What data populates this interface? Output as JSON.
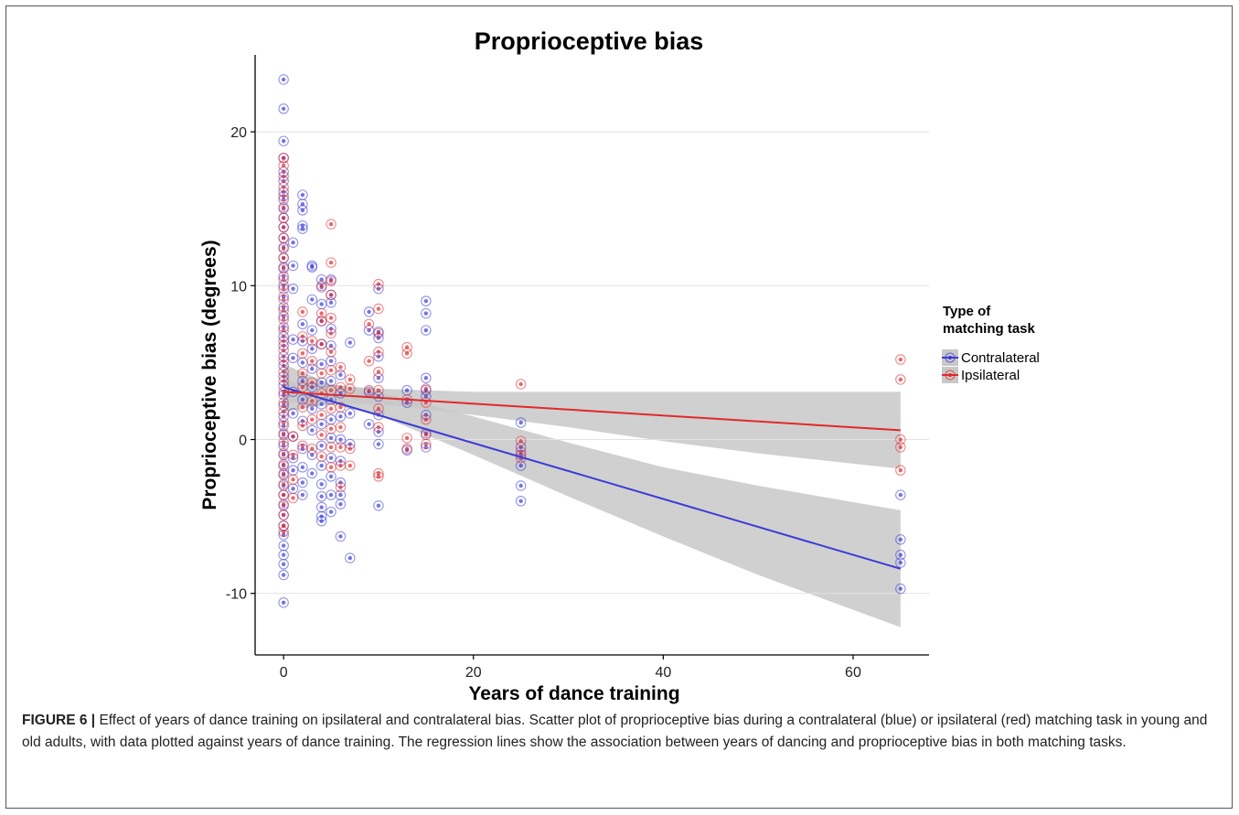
{
  "figure": {
    "caption_label": "FIGURE 6 |",
    "caption_text": " Effect of years of dance training on ipsilateral and contralateral bias. Scatter plot of proprioceptive bias during a contralateral (blue) or ipsilateral (red) matching task in young and old adults, with data plotted against years of dance training. The regression lines show the association between years of dancing and proprioceptive bias in both matching tasks."
  },
  "colors": {
    "contralateral": "#3b3bd6",
    "ipsilateral": "#e02a2a",
    "ribbon": "#c8c8c8"
  },
  "chart_data": {
    "type": "scatter",
    "title": "Proprioceptive bias",
    "xlabel": "Years of dance training",
    "ylabel": "Proprioceptive bias (degrees)",
    "xlim": [
      -3,
      68
    ],
    "ylim": [
      -14,
      25
    ],
    "xticks": [
      0,
      20,
      40,
      60
    ],
    "yticks": [
      -10,
      0,
      10,
      20
    ],
    "grid": "horizontal",
    "legend": {
      "title_line1": "Type of",
      "title_line2": "matching task",
      "placement": "right"
    },
    "series": [
      {
        "name": "Contralateral",
        "color": "#3b3bd6",
        "points": [
          [
            0,
            23.4
          ],
          [
            0,
            21.5
          ],
          [
            0,
            19.4
          ],
          [
            0,
            18.3
          ],
          [
            0,
            17.4
          ],
          [
            0,
            16.8
          ],
          [
            0,
            16.1
          ],
          [
            0,
            15.6
          ],
          [
            0,
            15.0
          ],
          [
            0,
            14.4
          ],
          [
            0,
            13.8
          ],
          [
            0,
            13.1
          ],
          [
            0,
            12.5
          ],
          [
            0,
            11.8
          ],
          [
            0,
            11.2
          ],
          [
            0,
            10.6
          ],
          [
            0,
            10.0
          ],
          [
            0,
            9.3
          ],
          [
            0,
            8.6
          ],
          [
            0,
            8.0
          ],
          [
            0,
            7.3
          ],
          [
            0,
            6.7
          ],
          [
            0,
            6.1
          ],
          [
            0,
            5.4
          ],
          [
            0,
            4.8
          ],
          [
            0,
            4.1
          ],
          [
            0,
            3.5
          ],
          [
            0,
            2.9
          ],
          [
            0,
            2.2
          ],
          [
            0,
            1.5
          ],
          [
            0,
            0.9
          ],
          [
            0,
            0.3
          ],
          [
            0,
            -0.4
          ],
          [
            0,
            -1.0
          ],
          [
            0,
            -1.7
          ],
          [
            0,
            -2.3
          ],
          [
            0,
            -3.0
          ],
          [
            0,
            -3.6
          ],
          [
            0,
            -4.3
          ],
          [
            0,
            -4.9
          ],
          [
            0,
            -5.6
          ],
          [
            0,
            -6.2
          ],
          [
            0,
            -6.9
          ],
          [
            0,
            -7.5
          ],
          [
            0,
            -8.1
          ],
          [
            0,
            -8.8
          ],
          [
            0,
            -10.6
          ],
          [
            1,
            12.8
          ],
          [
            1,
            11.3
          ],
          [
            1,
            9.8
          ],
          [
            1,
            6.5
          ],
          [
            1,
            5.3
          ],
          [
            1,
            3.1
          ],
          [
            1,
            1.7
          ],
          [
            1,
            0.2
          ],
          [
            1,
            -1.2
          ],
          [
            1,
            -2.0
          ],
          [
            1,
            -3.2
          ],
          [
            2,
            15.9
          ],
          [
            2,
            15.3
          ],
          [
            2,
            14.9
          ],
          [
            2,
            13.9
          ],
          [
            2,
            13.7
          ],
          [
            2,
            7.5
          ],
          [
            2,
            6.4
          ],
          [
            2,
            5.0
          ],
          [
            2,
            3.8
          ],
          [
            2,
            2.6
          ],
          [
            2,
            1.2
          ],
          [
            2,
            -0.6
          ],
          [
            2,
            -1.8
          ],
          [
            2,
            -2.8
          ],
          [
            2,
            -3.6
          ],
          [
            3,
            11.3
          ],
          [
            3,
            11.2
          ],
          [
            3,
            9.1
          ],
          [
            3,
            7.1
          ],
          [
            3,
            5.9
          ],
          [
            3,
            4.6
          ],
          [
            3,
            3.4
          ],
          [
            3,
            2.0
          ],
          [
            3,
            0.6
          ],
          [
            3,
            -1.0
          ],
          [
            3,
            -2.2
          ],
          [
            4,
            10.4
          ],
          [
            4,
            9.9
          ],
          [
            4,
            8.8
          ],
          [
            4,
            7.7
          ],
          [
            4,
            6.2
          ],
          [
            4,
            4.9
          ],
          [
            4,
            3.7
          ],
          [
            4,
            2.3
          ],
          [
            4,
            1.0
          ],
          [
            4,
            -0.4
          ],
          [
            4,
            -1.7
          ],
          [
            4,
            -2.9
          ],
          [
            4,
            -3.7
          ],
          [
            4,
            -4.4
          ],
          [
            4,
            -5.0
          ],
          [
            4,
            -5.3
          ],
          [
            5,
            10.4
          ],
          [
            5,
            9.4
          ],
          [
            5,
            8.9
          ],
          [
            5,
            7.2
          ],
          [
            5,
            6.1
          ],
          [
            5,
            5.1
          ],
          [
            5,
            3.8
          ],
          [
            5,
            2.6
          ],
          [
            5,
            1.3
          ],
          [
            5,
            0.1
          ],
          [
            5,
            -1.2
          ],
          [
            5,
            -2.4
          ],
          [
            5,
            -3.6
          ],
          [
            5,
            -4.7
          ],
          [
            6,
            4.2
          ],
          [
            6,
            3.0
          ],
          [
            6,
            1.5
          ],
          [
            6,
            0.0
          ],
          [
            6,
            -1.4
          ],
          [
            6,
            -2.8
          ],
          [
            6,
            -3.6
          ],
          [
            6,
            -4.2
          ],
          [
            6,
            -6.3
          ],
          [
            7,
            6.3
          ],
          [
            7,
            1.7
          ],
          [
            7,
            -0.3
          ],
          [
            7,
            -7.7
          ],
          [
            9,
            8.3
          ],
          [
            9,
            7.1
          ],
          [
            9,
            3.1
          ],
          [
            9,
            1.0
          ],
          [
            10,
            9.8
          ],
          [
            10,
            7.0
          ],
          [
            10,
            6.6
          ],
          [
            10,
            5.4
          ],
          [
            10,
            4.0
          ],
          [
            10,
            2.8
          ],
          [
            10,
            1.6
          ],
          [
            10,
            0.5
          ],
          [
            10,
            -0.3
          ],
          [
            10,
            -4.3
          ],
          [
            13,
            3.2
          ],
          [
            13,
            2.4
          ],
          [
            13,
            -0.7
          ],
          [
            15,
            9.0
          ],
          [
            15,
            8.2
          ],
          [
            15,
            7.1
          ],
          [
            15,
            4.0
          ],
          [
            15,
            3.2
          ],
          [
            15,
            2.8
          ],
          [
            15,
            1.6
          ],
          [
            15,
            0.4
          ],
          [
            15,
            -0.5
          ],
          [
            25,
            1.1
          ],
          [
            25,
            -0.5
          ],
          [
            25,
            -1.0
          ],
          [
            25,
            -1.7
          ],
          [
            25,
            -3.0
          ],
          [
            25,
            -4.0
          ],
          [
            65,
            -3.6
          ],
          [
            65,
            -6.5
          ],
          [
            65,
            -7.5
          ],
          [
            65,
            -8.0
          ],
          [
            65,
            -9.7
          ]
        ],
        "fit": {
          "x": [
            0,
            65
          ],
          "y": [
            3.4,
            -8.4
          ]
        },
        "ci_upper": [
          [
            0,
            4.9
          ],
          [
            5,
            3.6
          ],
          [
            10,
            3.1
          ],
          [
            20,
            1.5
          ],
          [
            30,
            -0.2
          ],
          [
            40,
            -1.8
          ],
          [
            50,
            -3.0
          ],
          [
            65,
            -4.6
          ]
        ],
        "ci_lower": [
          [
            0,
            1.8
          ],
          [
            5,
            2.3
          ],
          [
            10,
            1.6
          ],
          [
            20,
            -1.0
          ],
          [
            30,
            -3.7
          ],
          [
            40,
            -6.3
          ],
          [
            50,
            -8.8
          ],
          [
            65,
            -12.2
          ]
        ]
      },
      {
        "name": "Ipsilateral",
        "color": "#e02a2a",
        "points": [
          [
            0,
            18.3
          ],
          [
            0,
            17.8
          ],
          [
            0,
            17.1
          ],
          [
            0,
            16.4
          ],
          [
            0,
            15.8
          ],
          [
            0,
            15.1
          ],
          [
            0,
            14.4
          ],
          [
            0,
            13.8
          ],
          [
            0,
            13.1
          ],
          [
            0,
            12.4
          ],
          [
            0,
            11.8
          ],
          [
            0,
            11.1
          ],
          [
            0,
            10.4
          ],
          [
            0,
            9.8
          ],
          [
            0,
            9.1
          ],
          [
            0,
            8.4
          ],
          [
            0,
            7.8
          ],
          [
            0,
            7.1
          ],
          [
            0,
            6.4
          ],
          [
            0,
            5.8
          ],
          [
            0,
            5.1
          ],
          [
            0,
            4.4
          ],
          [
            0,
            3.8
          ],
          [
            0,
            3.1
          ],
          [
            0,
            2.4
          ],
          [
            0,
            1.8
          ],
          [
            0,
            1.1
          ],
          [
            0,
            0.4
          ],
          [
            0,
            -0.2
          ],
          [
            0,
            -0.9
          ],
          [
            0,
            -1.6
          ],
          [
            0,
            -2.2
          ],
          [
            0,
            -2.9
          ],
          [
            0,
            -3.6
          ],
          [
            0,
            -4.2
          ],
          [
            0,
            -4.9
          ],
          [
            0,
            -5.6
          ],
          [
            0,
            -6.0
          ],
          [
            1,
            0.2
          ],
          [
            1,
            -1.0
          ],
          [
            1,
            -2.6
          ],
          [
            1,
            -3.8
          ],
          [
            2,
            8.3
          ],
          [
            2,
            6.7
          ],
          [
            2,
            5.6
          ],
          [
            2,
            4.3
          ],
          [
            2,
            3.4
          ],
          [
            2,
            2.1
          ],
          [
            2,
            0.9
          ],
          [
            2,
            -0.4
          ],
          [
            3,
            6.4
          ],
          [
            3,
            5.1
          ],
          [
            3,
            3.7
          ],
          [
            3,
            2.5
          ],
          [
            3,
            1.3
          ],
          [
            3,
            -0.6
          ],
          [
            4,
            10.0
          ],
          [
            4,
            8.2
          ],
          [
            4,
            7.7
          ],
          [
            4,
            6.2
          ],
          [
            4,
            4.3
          ],
          [
            4,
            3.0
          ],
          [
            4,
            1.6
          ],
          [
            4,
            0.3
          ],
          [
            4,
            -1.1
          ],
          [
            5,
            14.0
          ],
          [
            5,
            11.5
          ],
          [
            5,
            10.3
          ],
          [
            5,
            9.4
          ],
          [
            5,
            7.9
          ],
          [
            5,
            6.9
          ],
          [
            5,
            5.7
          ],
          [
            5,
            4.5
          ],
          [
            5,
            3.2
          ],
          [
            5,
            2.0
          ],
          [
            5,
            0.7
          ],
          [
            5,
            -0.5
          ],
          [
            5,
            -1.8
          ],
          [
            6,
            4.7
          ],
          [
            6,
            3.4
          ],
          [
            6,
            2.1
          ],
          [
            6,
            0.8
          ],
          [
            6,
            -0.5
          ],
          [
            6,
            -1.7
          ],
          [
            6,
            -3.1
          ],
          [
            7,
            3.9
          ],
          [
            7,
            3.3
          ],
          [
            7,
            -0.6
          ],
          [
            7,
            -1.7
          ],
          [
            9,
            7.5
          ],
          [
            9,
            5.1
          ],
          [
            9,
            3.2
          ],
          [
            10,
            10.1
          ],
          [
            10,
            8.5
          ],
          [
            10,
            6.9
          ],
          [
            10,
            5.7
          ],
          [
            10,
            4.4
          ],
          [
            10,
            3.2
          ],
          [
            10,
            2.0
          ],
          [
            10,
            0.8
          ],
          [
            10,
            -2.2
          ],
          [
            10,
            -2.4
          ],
          [
            13,
            6.0
          ],
          [
            13,
            5.6
          ],
          [
            13,
            2.6
          ],
          [
            13,
            0.1
          ],
          [
            13,
            -0.6
          ],
          [
            15,
            3.3
          ],
          [
            15,
            2.4
          ],
          [
            15,
            1.3
          ],
          [
            15,
            0.3
          ],
          [
            15,
            -0.3
          ],
          [
            25,
            3.6
          ],
          [
            25,
            -0.1
          ],
          [
            25,
            -0.8
          ],
          [
            25,
            -1.2
          ],
          [
            65,
            5.2
          ],
          [
            65,
            3.9
          ],
          [
            65,
            0.0
          ],
          [
            65,
            -0.5
          ],
          [
            65,
            -2.0
          ]
        ],
        "fit": {
          "x": [
            0,
            65
          ],
          "y": [
            3.1,
            0.6
          ]
        },
        "ci_upper": [
          [
            0,
            3.8
          ],
          [
            10,
            3.3
          ],
          [
            20,
            3.1
          ],
          [
            30,
            3.1
          ],
          [
            40,
            3.1
          ],
          [
            50,
            3.1
          ],
          [
            65,
            3.1
          ]
        ],
        "ci_lower": [
          [
            0,
            2.4
          ],
          [
            10,
            2.3
          ],
          [
            20,
            1.6
          ],
          [
            30,
            0.8
          ],
          [
            40,
            -0.1
          ],
          [
            50,
            -0.9
          ],
          [
            65,
            -1.9
          ]
        ]
      }
    ]
  }
}
